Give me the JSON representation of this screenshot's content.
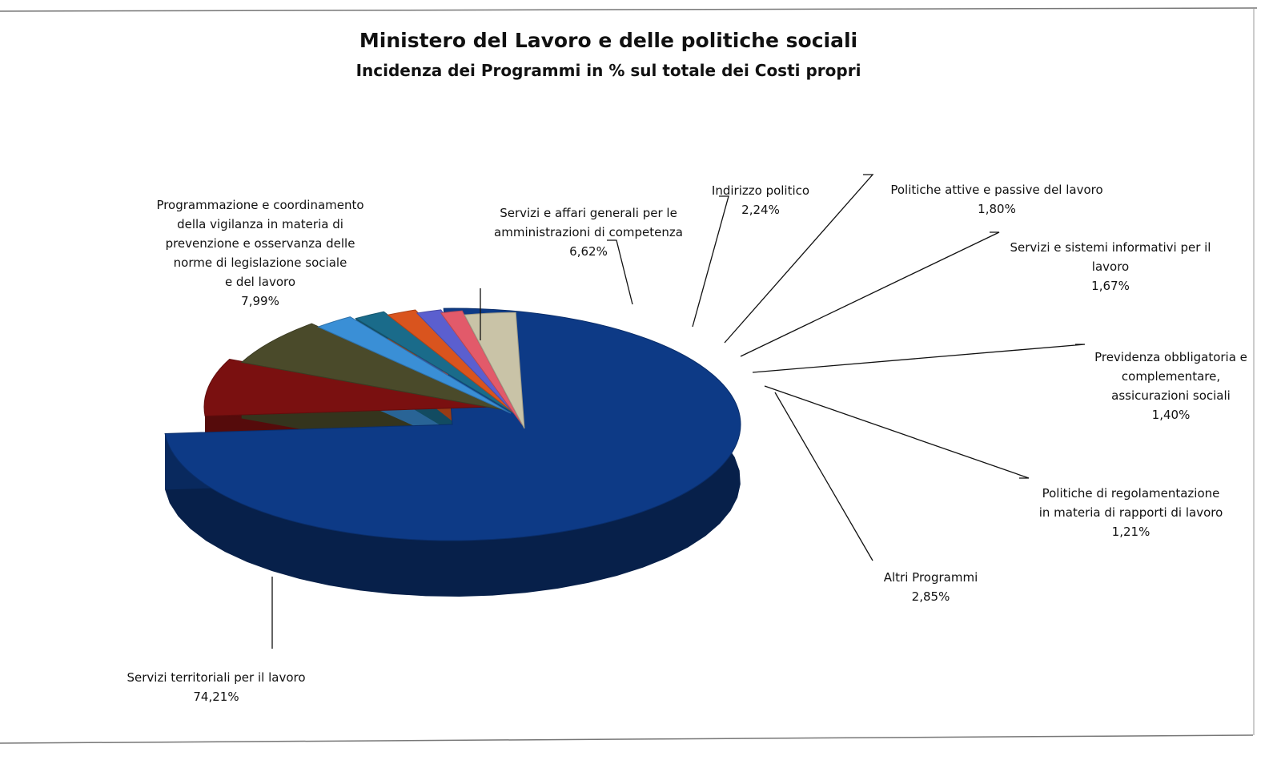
{
  "chart_data": {
    "type": "pie",
    "title": "Ministero del Lavoro e delle politiche sociali",
    "subtitle": "Incidenza dei Programmi in % sul totale dei Costi propri",
    "slices": [
      {
        "label": "Servizi territoriali per il lavoro",
        "value_label": "74,21%",
        "value": 74.21,
        "color": "#0d3a86"
      },
      {
        "label": "Programmazione e coordinamento\ndella vigilanza in materia di\nprevenzione e osservanza  delle\nnorme di legislazione sociale\ne del lavoro",
        "value_label": "7,99%",
        "value": 7.99,
        "color": "#7a1010"
      },
      {
        "label": "Servizi e affari generali per le\namministrazioni di competenza",
        "value_label": "6,62%",
        "value": 6.62,
        "color": "#4a4a2a"
      },
      {
        "label": "Indirizzo politico",
        "value_label": "2,24%",
        "value": 2.24,
        "color": "#3a8fd6"
      },
      {
        "label": "Politiche attive e passive del lavoro",
        "value_label": "1,80%",
        "value": 1.8,
        "color": "#1a6b8a"
      },
      {
        "label": "Servizi e sistemi informativi per il\nlavoro",
        "value_label": "1,67%",
        "value": 1.67,
        "color": "#d9541e"
      },
      {
        "label": "Previdenza obbligatoria e\ncomplementare,\nassicurazioni sociali",
        "value_label": "1,40%",
        "value": 1.4,
        "color": "#5b5fcf"
      },
      {
        "label": "Politiche di regolamentazione\nin materia di rapporti di lavoro",
        "value_label": "1,21%",
        "value": 1.21,
        "color": "#e25a6a"
      },
      {
        "label": "Altri Programmi",
        "value_label": "2,85%",
        "value": 2.85,
        "color": "#c9c3a7"
      }
    ]
  }
}
